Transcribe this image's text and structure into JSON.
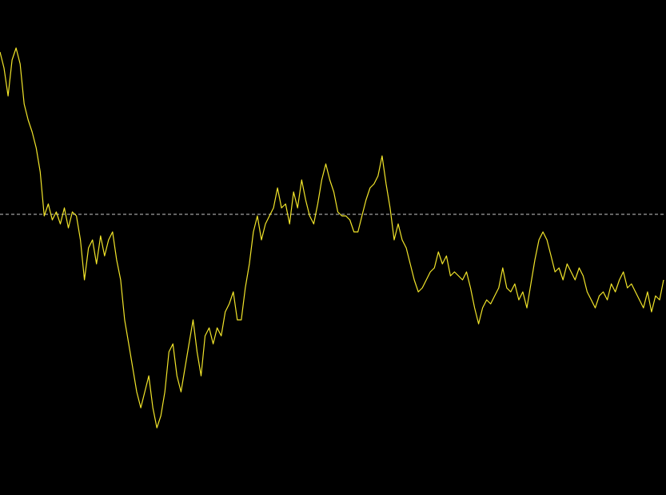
{
  "chart_data": {
    "type": "line",
    "values": [
      554,
      534,
      499,
      544,
      559,
      539,
      489,
      469,
      454,
      434,
      404,
      349,
      364,
      344,
      354,
      339,
      359,
      334,
      354,
      349,
      319,
      269,
      309,
      319,
      289,
      324,
      299,
      319,
      329,
      294,
      269,
      219,
      189,
      159,
      129,
      109,
      129,
      149,
      109,
      84,
      99,
      129,
      179,
      189,
      149,
      129,
      159,
      189,
      219,
      179,
      149,
      199,
      209,
      189,
      209,
      199,
      229,
      239,
      254,
      219,
      219,
      259,
      289,
      329,
      349,
      319,
      339,
      349,
      359,
      384,
      359,
      364,
      339,
      379,
      359,
      394,
      369,
      349,
      339,
      364,
      394,
      414,
      394,
      379,
      354,
      349,
      349,
      344,
      329,
      329,
      349,
      369,
      384,
      389,
      399,
      424,
      389,
      359,
      319,
      339,
      319,
      309,
      289,
      269,
      254,
      259,
      269,
      279,
      284,
      304,
      289,
      299,
      274,
      279,
      274,
      269,
      279,
      259,
      234,
      214,
      234,
      244,
      239,
      249,
      259,
      284,
      259,
      254,
      264,
      244,
      254,
      234,
      264,
      294,
      319,
      329,
      319,
      299,
      279,
      284,
      269,
      289,
      279,
      269,
      284,
      274,
      254,
      244,
      234,
      249,
      254,
      244,
      264,
      254,
      269,
      279,
      259,
      264,
      254,
      244,
      234,
      254,
      229,
      249,
      244,
      269
    ],
    "color": "#f2e52a",
    "reference_line": {
      "value": 351,
      "color": "#c8c8c8",
      "dashed": true
    },
    "ylim": [
      0,
      619
    ],
    "background": "#000000"
  }
}
